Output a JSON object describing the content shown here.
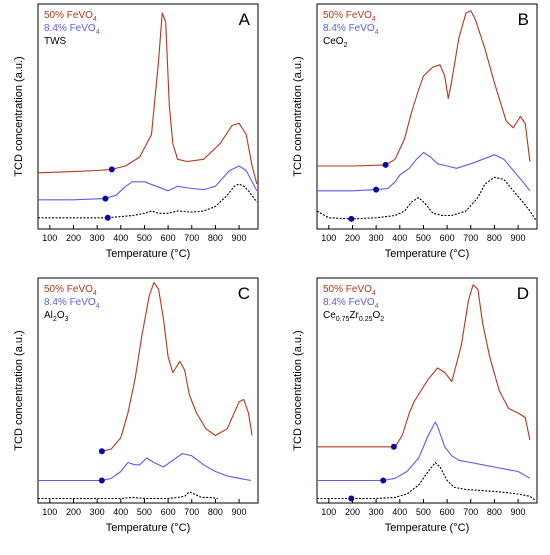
{
  "colors": {
    "red": "#b5361c",
    "blue": "#5b5cf0",
    "black": "#000000",
    "dot": "#0a0aa0"
  },
  "chart_data": [
    {
      "type": "line",
      "panel_letter": "A",
      "xlabel": "Temperature (°C)",
      "ylabel": "TCD concentration (a.u.)",
      "xlim": [
        50,
        980
      ],
      "xticks": [
        100,
        200,
        300,
        400,
        500,
        600,
        700,
        800,
        900
      ],
      "ylim": [
        0,
        100
      ],
      "legend": [
        {
          "label": "50% FeVO",
          "sub": "4",
          "color": "#b5361c"
        },
        {
          "label": "8.4% FeVO",
          "sub": "4",
          "color": "#5b5cf0"
        },
        {
          "label": "TWS",
          "sub": "",
          "color": "#000000"
        }
      ],
      "series": [
        {
          "color": "#b5361c",
          "dash": false,
          "x": [
            50,
            200,
            300,
            360,
            420,
            480,
            530,
            560,
            575,
            590,
            605,
            620,
            640,
            680,
            750,
            820,
            870,
            900,
            930,
            955,
            975
          ],
          "y": [
            25,
            25.5,
            26,
            26.5,
            28,
            32,
            42,
            75,
            96,
            92,
            55,
            38,
            31,
            30,
            31,
            38,
            46,
            47,
            42,
            28,
            20
          ]
        },
        {
          "color": "#5b5cf0",
          "dash": false,
          "x": [
            50,
            200,
            330,
            380,
            420,
            450,
            500,
            550,
            600,
            640,
            700,
            750,
            800,
            860,
            900,
            930,
            960,
            975
          ],
          "y": [
            13,
            13,
            13.5,
            15,
            19,
            21,
            21,
            19,
            17,
            19,
            18,
            17.5,
            19,
            26,
            28,
            26,
            20,
            17
          ]
        },
        {
          "color": "#000000",
          "dash": true,
          "x": [
            50,
            100,
            200,
            340,
            400,
            450,
            500,
            530,
            560,
            600,
            640,
            700,
            750,
            800,
            850,
            880,
            900,
            920,
            940,
            975
          ],
          "y": [
            5,
            5,
            5,
            5,
            5.5,
            6,
            7,
            8,
            7,
            7,
            8,
            7.5,
            8,
            10,
            15,
            19,
            20,
            19,
            17,
            12
          ]
        }
      ],
      "markers": [
        {
          "x": 362,
          "y": 26.5
        },
        {
          "x": 335,
          "y": 13.5
        },
        {
          "x": 345,
          "y": 5
        }
      ]
    },
    {
      "type": "line",
      "panel_letter": "B",
      "xlabel": "Temperature (°C)",
      "ylabel": "TCD concentration (a.u.)",
      "xlim": [
        50,
        980
      ],
      "xticks": [
        100,
        200,
        300,
        400,
        500,
        600,
        700,
        800,
        900
      ],
      "ylim": [
        0,
        100
      ],
      "legend": [
        {
          "label": "50% FeVO",
          "sub": "4",
          "color": "#b5361c"
        },
        {
          "label": "8.4% FeVO",
          "sub": "4",
          "color": "#5b5cf0"
        },
        {
          "label": "CeO",
          "sub": "2",
          "color": "#000000"
        }
      ],
      "series": [
        {
          "color": "#b5361c",
          "dash": false,
          "x": [
            50,
            200,
            340,
            380,
            420,
            450,
            480,
            500,
            540,
            570,
            590,
            605,
            620,
            650,
            680,
            700,
            720,
            760,
            800,
            850,
            880,
            910,
            930,
            950
          ],
          "y": [
            28,
            28,
            28.5,
            31,
            40,
            52,
            62,
            68,
            72,
            73,
            68,
            58,
            66,
            85,
            96,
            97,
            93,
            80,
            65,
            48,
            45,
            50,
            47,
            30
          ]
        },
        {
          "color": "#5b5cf0",
          "dash": false,
          "x": [
            50,
            200,
            300,
            350,
            380,
            400,
            440,
            470,
            500,
            530,
            560,
            600,
            640,
            700,
            750,
            800,
            840,
            880,
            920,
            950
          ],
          "y": [
            17,
            17,
            17.5,
            18,
            21,
            24,
            27,
            31,
            34,
            32,
            29,
            28,
            27,
            29,
            31,
            33,
            31,
            26,
            21,
            17
          ]
        },
        {
          "color": "#000000",
          "dash": true,
          "x": [
            50,
            100,
            200,
            300,
            380,
            420,
            450,
            480,
            510,
            540,
            580,
            620,
            680,
            730,
            760,
            800,
            840,
            880,
            920,
            950,
            975
          ],
          "y": [
            8,
            5,
            4.5,
            5,
            6,
            8,
            12,
            14,
            11,
            7,
            6,
            6,
            8,
            14,
            20,
            23,
            22,
            17,
            12,
            8,
            4
          ]
        }
      ],
      "markers": [
        {
          "x": 340,
          "y": 28.5
        },
        {
          "x": 300,
          "y": 17.5
        },
        {
          "x": 195,
          "y": 4.5
        }
      ]
    },
    {
      "type": "line",
      "panel_letter": "C",
      "xlabel": "Temperature (°C)",
      "ylabel": "TCD concentration (a.u.)",
      "xlim": [
        50,
        980
      ],
      "xticks": [
        100,
        200,
        300,
        400,
        500,
        600,
        700,
        800,
        900
      ],
      "ylim": [
        0,
        100
      ],
      "legend": [
        {
          "label": "50% FeVO",
          "sub": "4",
          "color": "#b5361c"
        },
        {
          "label": "8.4% FeVO",
          "sub": "4",
          "color": "#5b5cf0"
        },
        {
          "label": "Al",
          "sub": "2",
          "tail": "O",
          "sub2": "3",
          "color": "#000000"
        }
      ],
      "series": [
        {
          "color": "#b5361c",
          "dash": false,
          "x": [
            320,
            360,
            400,
            430,
            460,
            490,
            520,
            540,
            560,
            580,
            600,
            620,
            650,
            670,
            690,
            720,
            760,
            800,
            850,
            900,
            920,
            940,
            955
          ],
          "y": [
            23,
            24,
            29,
            40,
            55,
            75,
            92,
            98,
            95,
            82,
            65,
            58,
            63,
            59,
            48,
            40,
            33,
            30,
            33,
            45,
            46,
            40,
            30
          ]
        },
        {
          "color": "#5b5cf0",
          "dash": false,
          "x": [
            50,
            200,
            320,
            360,
            400,
            430,
            460,
            480,
            510,
            540,
            580,
            620,
            660,
            700,
            750,
            800,
            850,
            900,
            950
          ],
          "y": [
            10,
            10,
            10,
            11,
            14,
            18,
            17,
            17,
            20,
            18,
            16,
            19,
            22,
            21,
            17,
            14,
            12,
            11,
            10
          ]
        },
        {
          "color": "#000000",
          "dash": true,
          "x": [
            50,
            100,
            200,
            300,
            400,
            450,
            500,
            550,
            600,
            640,
            670,
            690,
            710,
            740,
            780,
            810
          ],
          "y": [
            2,
            2,
            2,
            2,
            2,
            2.5,
            2,
            2,
            2,
            2.5,
            3,
            5,
            4,
            2.5,
            2.5,
            2
          ]
        }
      ],
      "markers": [
        {
          "x": 320,
          "y": 23
        },
        {
          "x": 320,
          "y": 10
        }
      ]
    },
    {
      "type": "line",
      "panel_letter": "D",
      "xlabel": "Temperature (°C)",
      "ylabel": "TCD concentration (a.u.)",
      "xlim": [
        50,
        980
      ],
      "xticks": [
        100,
        200,
        300,
        400,
        500,
        600,
        700,
        800,
        900
      ],
      "ylim": [
        0,
        100
      ],
      "legend": [
        {
          "label": "50% FeVO",
          "sub": "4",
          "color": "#b5361c"
        },
        {
          "label": "8.4% FeVO",
          "sub": "4",
          "color": "#5b5cf0"
        },
        {
          "label": "Ce",
          "sub": "0.75",
          "tail": "Zr",
          "sub2": "0.25",
          "tail2": "O",
          "sub3": "2",
          "color": "#000000"
        }
      ],
      "series": [
        {
          "color": "#b5361c",
          "dash": false,
          "x": [
            50,
            200,
            380,
            410,
            440,
            460,
            490,
            520,
            560,
            590,
            620,
            660,
            690,
            710,
            730,
            750,
            780,
            820,
            860,
            900,
            930,
            950
          ],
          "y": [
            25,
            25,
            25,
            30,
            40,
            45,
            50,
            55,
            60,
            58,
            54,
            70,
            90,
            97,
            95,
            80,
            65,
            50,
            42,
            40,
            38,
            28
          ]
        },
        {
          "color": "#5b5cf0",
          "dash": false,
          "x": [
            50,
            200,
            330,
            380,
            430,
            480,
            520,
            550,
            560,
            590,
            620,
            650,
            700,
            750,
            800,
            850,
            900,
            950
          ],
          "y": [
            10,
            10,
            10,
            11,
            14,
            20,
            30,
            36,
            34,
            25,
            21,
            19,
            18,
            17,
            16,
            15,
            14,
            11
          ]
        },
        {
          "color": "#000000",
          "dash": true,
          "x": [
            50,
            200,
            300,
            380,
            430,
            480,
            520,
            550,
            570,
            600,
            630,
            680,
            750,
            820,
            900,
            950,
            975
          ],
          "y": [
            2,
            2,
            2,
            2.5,
            4,
            8,
            14,
            18,
            16,
            10,
            7,
            6,
            5.5,
            5,
            4,
            3,
            1
          ]
        }
      ],
      "markers": [
        {
          "x": 375,
          "y": 25
        },
        {
          "x": 330,
          "y": 10
        },
        {
          "x": 195,
          "y": 2
        }
      ]
    }
  ]
}
